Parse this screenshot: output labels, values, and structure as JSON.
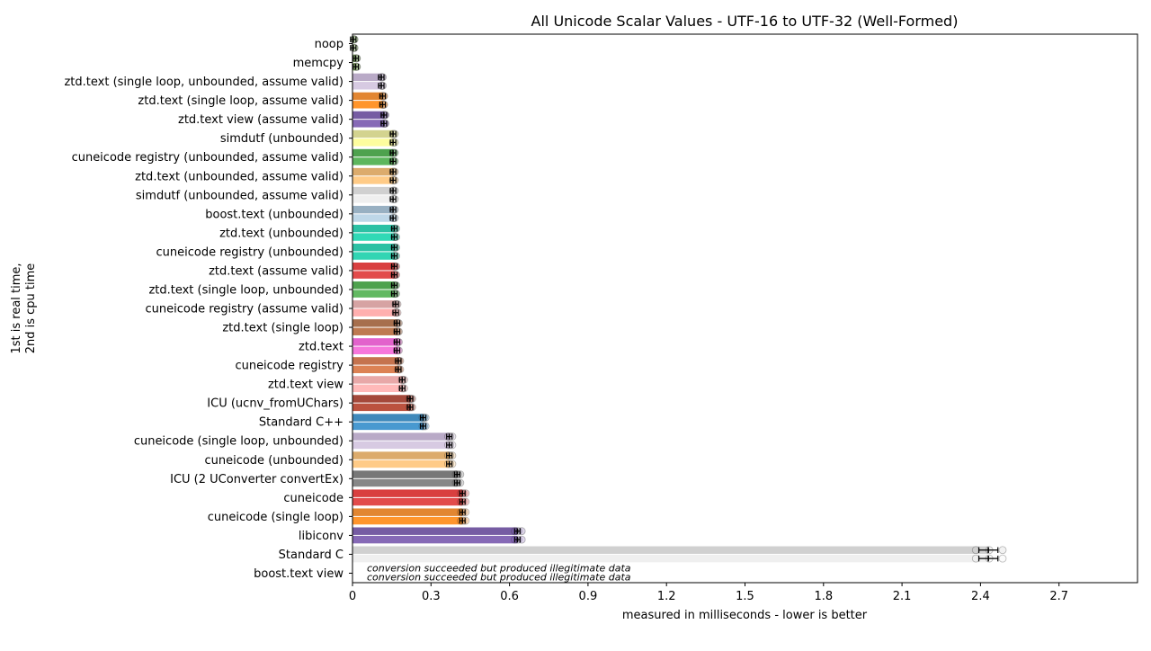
{
  "chart_data": {
    "type": "bar",
    "title": "All Unicode Scalar Values - UTF-16 to UTF-32 (Well-Formed)",
    "xlabel": "measured in milliseconds - lower is better",
    "ylabel": "1st is real time,\n2nd is cpu time",
    "xlim": [
      0,
      3.0
    ],
    "xticks": [
      "0",
      "0.3",
      "0.6",
      "0.9",
      "1.2",
      "1.5",
      "1.8",
      "2.1",
      "2.4",
      "2.7"
    ],
    "xtick_values": [
      0,
      0.3,
      0.6,
      0.9,
      1.2,
      1.5,
      1.8,
      2.1,
      2.4,
      2.7
    ],
    "grid": false,
    "legend": "none",
    "series": [
      {
        "name": "1st is real time"
      },
      {
        "name": "2nd is cpu time"
      }
    ],
    "bars": [
      {
        "label": "noop",
        "real": 0.003,
        "cpu": 0.003,
        "colors": [
          "#98c379",
          "#b3d98f"
        ]
      },
      {
        "label": "memcpy",
        "real": 0.012,
        "cpu": 0.012,
        "colors": [
          "#7aa35a",
          "#8fbc6a"
        ]
      },
      {
        "label": "ztd.text (single loop, unbounded, assume valid)",
        "real": 0.11,
        "cpu": 0.11,
        "colors": [
          "#b3a3c2",
          "#d4c5e0"
        ]
      },
      {
        "label": "ztd.text (single loop, assume valid)",
        "real": 0.115,
        "cpu": 0.115,
        "colors": [
          "#e07c1f",
          "#ff8c1a"
        ]
      },
      {
        "label": "ztd.text view (assume valid)",
        "real": 0.12,
        "cpu": 0.12,
        "colors": [
          "#6a4e9b",
          "#7c5cb0"
        ]
      },
      {
        "label": "simdutf (unbounded)",
        "real": 0.155,
        "cpu": 0.155,
        "colors": [
          "#cfcf86",
          "#fdfd96"
        ]
      },
      {
        "label": "cuneicode registry (unbounded, assume valid)",
        "real": 0.155,
        "cpu": 0.155,
        "colors": [
          "#3f9a3f",
          "#4fb04f"
        ]
      },
      {
        "label": "ztd.text (unbounded, assume valid)",
        "real": 0.155,
        "cpu": 0.155,
        "colors": [
          "#d9a45f",
          "#ffc77d"
        ]
      },
      {
        "label": "simdutf (unbounded, assume valid)",
        "real": 0.155,
        "cpu": 0.155,
        "colors": [
          "#cccccc",
          "#eeeeee"
        ]
      },
      {
        "label": "boost.text (unbounded)",
        "real": 0.155,
        "cpu": 0.155,
        "colors": [
          "#8fa9bd",
          "#b8d4e6"
        ]
      },
      {
        "label": "ztd.text (unbounded)",
        "real": 0.16,
        "cpu": 0.16,
        "colors": [
          "#1abc9c",
          "#1ed6b0"
        ]
      },
      {
        "label": "cuneicode registry (unbounded)",
        "real": 0.16,
        "cpu": 0.16,
        "colors": [
          "#1abc9c",
          "#21d1ad"
        ]
      },
      {
        "label": "ztd.text (assume valid)",
        "real": 0.16,
        "cpu": 0.16,
        "colors": [
          "#d62f2f",
          "#e03c3c"
        ]
      },
      {
        "label": "ztd.text (single loop, unbounded)",
        "real": 0.16,
        "cpu": 0.16,
        "colors": [
          "#3f9a3f",
          "#55b355"
        ]
      },
      {
        "label": "cuneicode registry (assume valid)",
        "real": 0.165,
        "cpu": 0.165,
        "colors": [
          "#d39b9b",
          "#ffa8a8"
        ]
      },
      {
        "label": "ztd.text (single loop)",
        "real": 0.17,
        "cpu": 0.17,
        "colors": [
          "#a0633e",
          "#b86f42"
        ]
      },
      {
        "label": "ztd.text",
        "real": 0.17,
        "cpu": 0.17,
        "colors": [
          "#e055c8",
          "#f56bd9"
        ]
      },
      {
        "label": "cuneicode registry",
        "real": 0.175,
        "cpu": 0.175,
        "colors": [
          "#c0673f",
          "#d97745"
        ]
      },
      {
        "label": "ztd.text view",
        "real": 0.19,
        "cpu": 0.19,
        "colors": [
          "#e6a1a1",
          "#ffb3b3"
        ]
      },
      {
        "label": "ICU (ucnv_fromUChars)",
        "real": 0.22,
        "cpu": 0.22,
        "colors": [
          "#9c3a2a",
          "#b5432f"
        ]
      },
      {
        "label": "Standard C++",
        "real": 0.27,
        "cpu": 0.27,
        "colors": [
          "#2f7fb5",
          "#3a90cc"
        ]
      },
      {
        "label": "cuneicode (single loop, unbounded)",
        "real": 0.37,
        "cpu": 0.37,
        "colors": [
          "#b3a3c2",
          "#d4c5e0"
        ]
      },
      {
        "label": "cuneicode (unbounded)",
        "real": 0.37,
        "cpu": 0.37,
        "colors": [
          "#d9a45f",
          "#ffc77d"
        ]
      },
      {
        "label": "ICU (2 UConverter convertEx)",
        "real": 0.4,
        "cpu": 0.4,
        "colors": [
          "#6b6b6b",
          "#7d7d7d"
        ]
      },
      {
        "label": "cuneicode",
        "real": 0.42,
        "cpu": 0.42,
        "colors": [
          "#d62f2f",
          "#e03c3c"
        ]
      },
      {
        "label": "cuneicode (single loop)",
        "real": 0.42,
        "cpu": 0.42,
        "colors": [
          "#e07c1f",
          "#ff8c1a"
        ]
      },
      {
        "label": "libiconv",
        "real": 0.63,
        "cpu": 0.63,
        "colors": [
          "#6a4e9b",
          "#7c5cb0"
        ]
      },
      {
        "label": "Standard C",
        "real": 2.43,
        "cpu": 2.43,
        "colors": [
          "#cccccc",
          "#eeeeee"
        ]
      },
      {
        "label": "boost.text view",
        "real": null,
        "cpu": null,
        "colors": [
          "#ffffff",
          "#ffffff"
        ]
      }
    ],
    "annotations": [
      "conversion succeeded but produced illegitimate data",
      "conversion succeeded but produced illegitimate data"
    ]
  }
}
